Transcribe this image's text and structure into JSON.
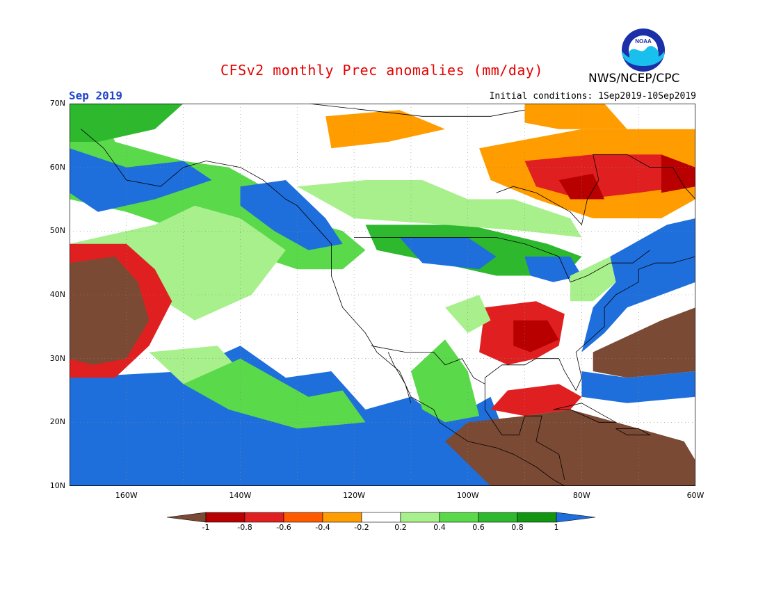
{
  "title": "CFSv2 monthly Prec anomalies (mm/day)",
  "agency": "NWS/NCEP/CPC",
  "logo_text": "NOAA",
  "month_label": "Sep 2019",
  "initial_conditions": "Initial conditions: 1Sep2019-10Sep2019",
  "lat_labels": [
    "70N",
    "60N",
    "50N",
    "40N",
    "30N",
    "20N",
    "10N"
  ],
  "lon_labels": [
    "160W",
    "140W",
    "120W",
    "100W",
    "80W",
    "60W"
  ],
  "colorbar": {
    "labels": [
      "-1",
      "-0.8",
      "-0.6",
      "-0.4",
      "-0.2",
      "0.2",
      "0.4",
      "0.6",
      "0.8",
      "1"
    ],
    "colors": [
      "#7a4a35",
      "#b80000",
      "#e02020",
      "#ff5a00",
      "#ff9d00",
      "#ffffff",
      "#a8f08c",
      "#5ad94a",
      "#2db82d",
      "#129612",
      "#1e6fdc"
    ]
  },
  "map": {
    "lon_range": [
      -170,
      -60
    ],
    "lat_range": [
      10,
      70
    ],
    "anomaly_field": "gridded precipitation anomaly (mm/day)"
  }
}
